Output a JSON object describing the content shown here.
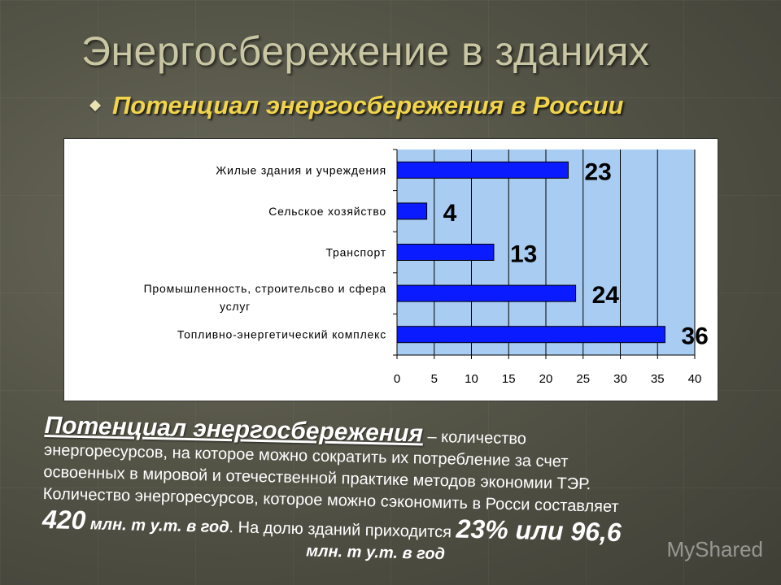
{
  "slide": {
    "title": "Энергосбережение в зданиях",
    "subtitle": "Потенциал энергосбережения в России"
  },
  "chart_data": {
    "type": "bar",
    "orientation": "horizontal",
    "categories": [
      "Жилые здания и учреждения",
      "Сельское хозяйство",
      "Транспорт",
      "Промышленность, строительсво и сфера услуг",
      "Топливно-энергетический комплекс"
    ],
    "values": [
      23,
      4,
      13,
      24,
      36
    ],
    "xlim": [
      0,
      40
    ],
    "xticks": [
      0,
      5,
      10,
      15,
      20,
      25,
      30,
      35,
      40
    ],
    "grid": true,
    "bar_color": "#0a1cff",
    "plot_background": "#a9ccf2"
  },
  "text": {
    "term": "Потенциал энергосбережения",
    "def_tail": " – количество",
    "line2": "энергоресурсов, на которое можно сократить их потребление за счет",
    "line3": "освоенных в мировой и отечественной практике методов экономии ТЭР.",
    "line4": "Количество энергоресурсов, которое можно сэкономить в Росси составляет",
    "amount": "420",
    "unit1": " млн. т у.т. в год",
    "mid": ". На долю зданий приходится ",
    "share": "23% или 96,6",
    "unit2": "млн. т у.т. в год"
  },
  "watermark": "MyShared"
}
